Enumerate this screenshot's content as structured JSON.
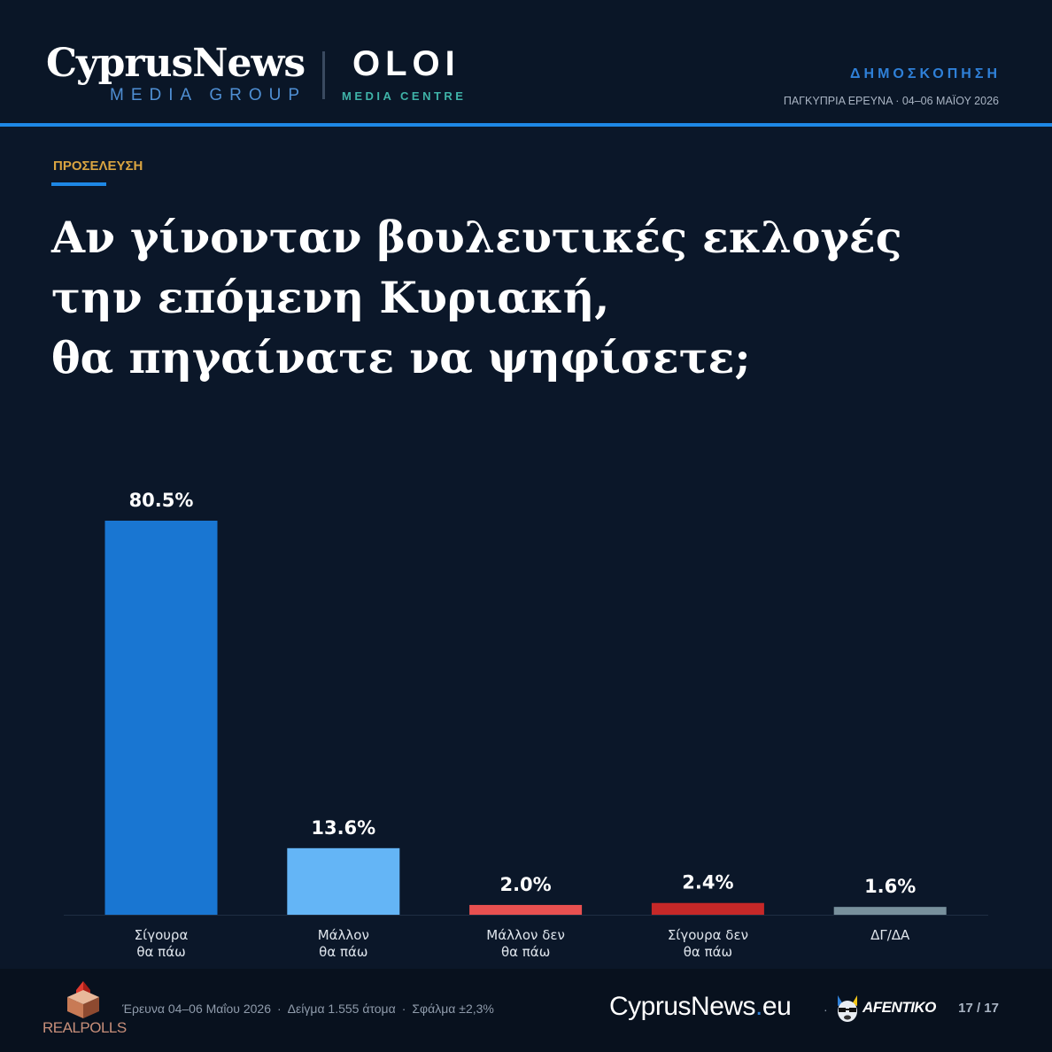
{
  "header": {
    "brand_main": "CyprusNews",
    "brand_sub": "MEDIA GROUP",
    "partner_main": "OLOI",
    "partner_sub": "MEDIA CENTRE",
    "label": "ΔΗΜΟΣΚΟΠΗΣΗ",
    "survey_date": "ΠΑΓΚΥΠΡΙΑ ΕΡΕΥΝΑ · 04–06 ΜΑΪΟΥ 2026"
  },
  "kicker": "ΠΡΟΣΕΛΕΥΣΗ",
  "title_lines": [
    "Αν γίνονταν βουλευτικές εκλογές",
    "την επόμενη Κυριακή,",
    "θα πηγαίνατε να ψηφίσετε;"
  ],
  "chart_data": {
    "type": "bar",
    "categories": [
      [
        "Σίγουρα",
        "θα πάω"
      ],
      [
        "Μάλλον",
        "θα πάω"
      ],
      [
        "Μάλλον δεν",
        "θα πάω"
      ],
      [
        "Σίγουρα δεν",
        "θα πάω"
      ],
      [
        "ΔΓ/ΔΑ"
      ]
    ],
    "values": [
      80.5,
      13.6,
      2.0,
      2.4,
      1.6
    ],
    "value_labels": [
      "80.5%",
      "13.6%",
      "2.0%",
      "2.4%",
      "1.6%"
    ],
    "colors": [
      "#1976d2",
      "#64b5f6",
      "#e85050",
      "#c62828",
      "#78909c"
    ],
    "ylim": [
      0,
      80.5
    ],
    "grid": false,
    "legend": "none"
  },
  "footer": {
    "pollster": "REALPOLLS",
    "survey": "Έρευνα 04–06 Μαΐου 2026",
    "sample": "Δείγμα 1.555 άτομα",
    "error": "Σφάλμα ±2,3%",
    "site_name": "CyprusNews",
    "site_tld": "eu",
    "sponsor": "AFENTIKO",
    "page": "17 / 17"
  },
  "colors": {
    "background": "#0b1729",
    "accent": "#1e88e5",
    "kicker": "#d9a441"
  }
}
